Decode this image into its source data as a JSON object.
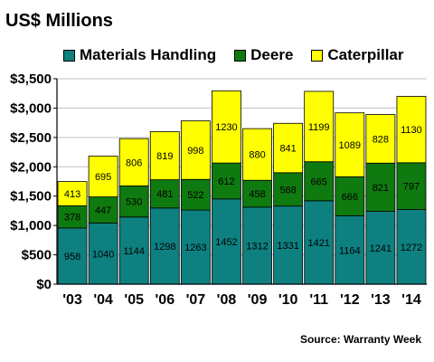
{
  "title": "US$ Millions",
  "source": "Source: Warranty Week",
  "colors": {
    "materials_handling": "#0e8080",
    "deere": "#0f7a0f",
    "caterpillar": "#ffff00",
    "plot_background": "#ffffff",
    "grid": "#c0c0c0"
  },
  "chart_data": {
    "type": "bar",
    "stacked": true,
    "categories": [
      "'03",
      "'04",
      "'05",
      "'06",
      "'07",
      "'08",
      "'09",
      "'10",
      "'11",
      "'12",
      "'13",
      "'14"
    ],
    "series": [
      {
        "name": "Materials Handling",
        "values": [
          958,
          1040,
          1144,
          1298,
          1263,
          1452,
          1312,
          1331,
          1421,
          1164,
          1241,
          1272
        ]
      },
      {
        "name": "Deere",
        "values": [
          378,
          447,
          530,
          481,
          522,
          612,
          458,
          568,
          665,
          666,
          821,
          797
        ]
      },
      {
        "name": "Caterpillar",
        "values": [
          413,
          695,
          806,
          819,
          998,
          1230,
          880,
          841,
          1199,
          1089,
          828,
          1130
        ]
      }
    ],
    "y_ticks": [
      "$0",
      "$500",
      "$1,000",
      "$1,500",
      "$2,000",
      "$2,500",
      "$3,000",
      "$3,500"
    ],
    "ylim": [
      0,
      3500
    ],
    "y_step": 500,
    "grid": true,
    "legend_position": "top",
    "data_labels": true
  }
}
